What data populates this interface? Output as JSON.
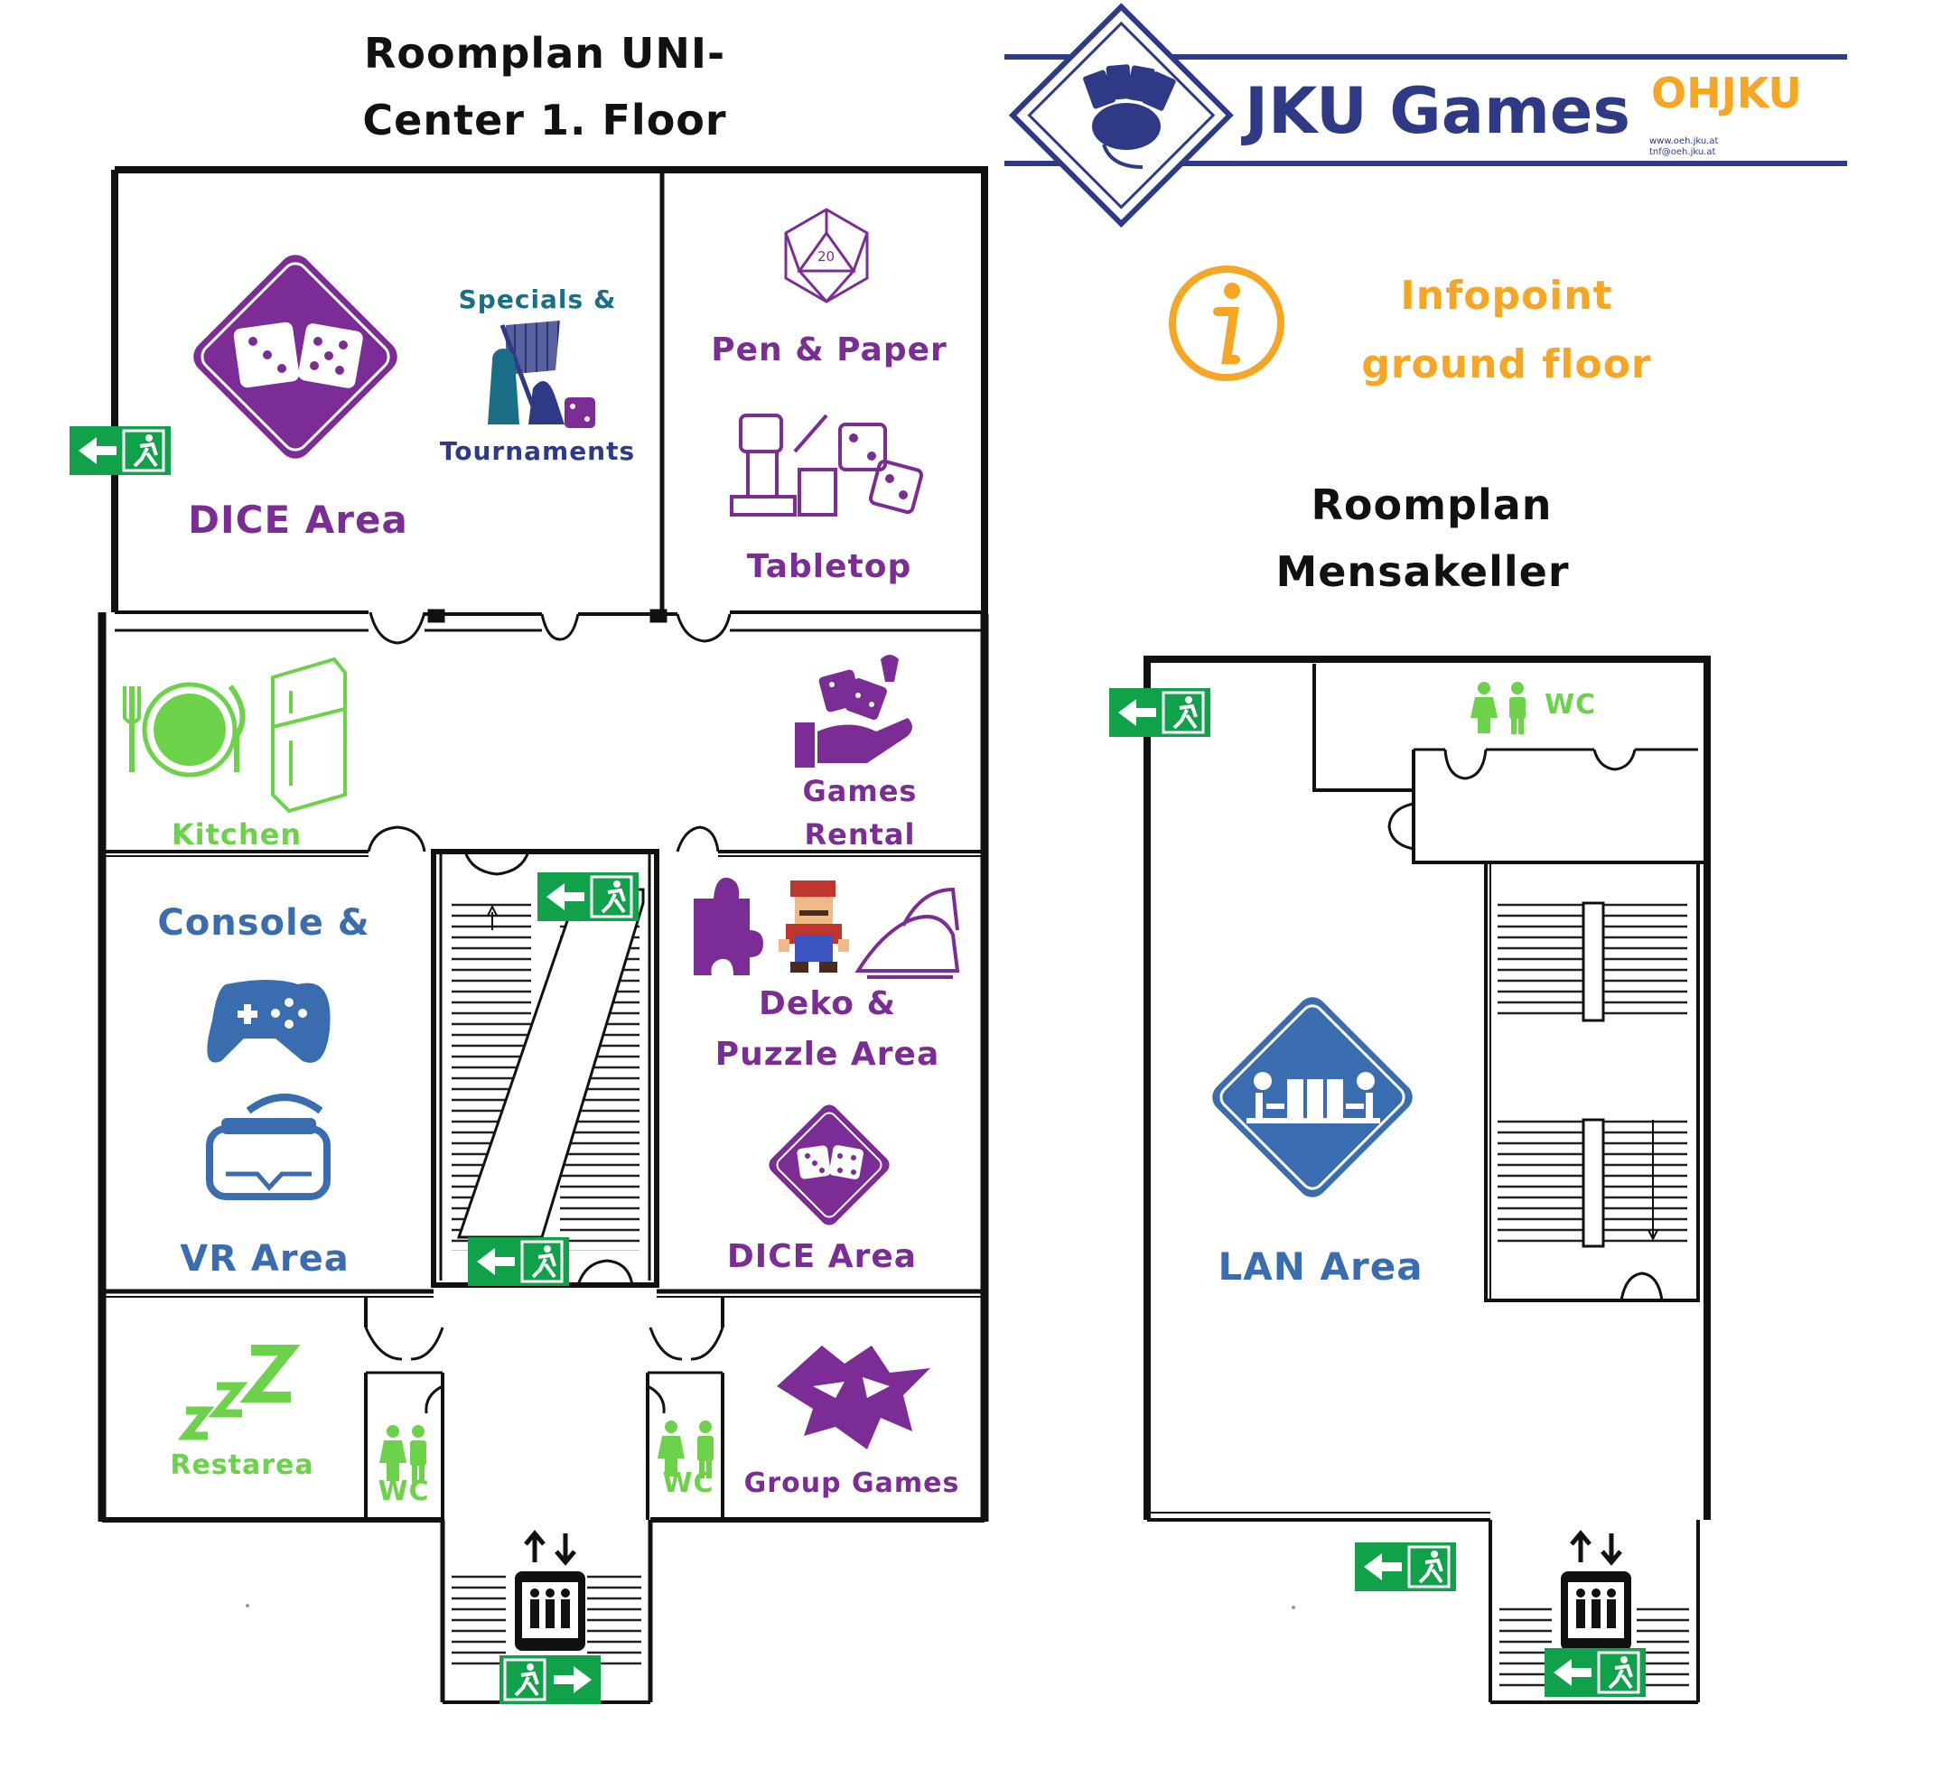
{
  "titles": {
    "first_floor": [
      "Roomplan UNI-",
      "Center 1. Floor"
    ],
    "mensakeller": [
      "Roomplan",
      "Mensakeller"
    ]
  },
  "header": {
    "logo_text": "JKU Games",
    "oh_logo": "OHJKU",
    "oh_contact": [
      "www.oeh.jku.at",
      "tnf@oeh.jku.at"
    ]
  },
  "infopoint": {
    "lines": [
      "Infopoint",
      "ground floor"
    ],
    "icon": "info-icon"
  },
  "rooms": {
    "dice_area_top": "DICE Area",
    "specials": [
      "Specials &",
      "Tournaments"
    ],
    "pen_paper": "Pen & Paper",
    "tabletop": "Tabletop",
    "kitchen": "Kitchen",
    "games_rental": [
      "Games",
      "Rental"
    ],
    "console_vr": [
      "Console &",
      "VR Area"
    ],
    "deko_puzzle": [
      "Deko &",
      "Puzzle Area"
    ],
    "dice_area_mid": "DICE Area",
    "restarea": "Restarea",
    "wc_left": "WC",
    "wc_right": "WC",
    "group_games": "Group Games",
    "lan_area": "LAN Area",
    "wc_mensa": "WC"
  },
  "icons": [
    "dice-diamond-icon",
    "chess-flag-icon",
    "d20-icon",
    "miniature-icon",
    "plate-icon",
    "fridge-icon",
    "hand-dice-icon",
    "gamepad-icon",
    "vr-headset-icon",
    "puzzle-icon",
    "pixel-character-icon",
    "iron-icon",
    "sleep-icon",
    "toilet-icon",
    "wolf-icon",
    "lan-diamond-icon",
    "elevator-icon",
    "emergency-exit-icon"
  ],
  "colors": {
    "purple": "#7b2d95",
    "blue": "#3a6db0",
    "green": "#6cd24a",
    "navy": "#2e3a86",
    "orange": "#f6a623",
    "exit_green": "#11a14a"
  }
}
